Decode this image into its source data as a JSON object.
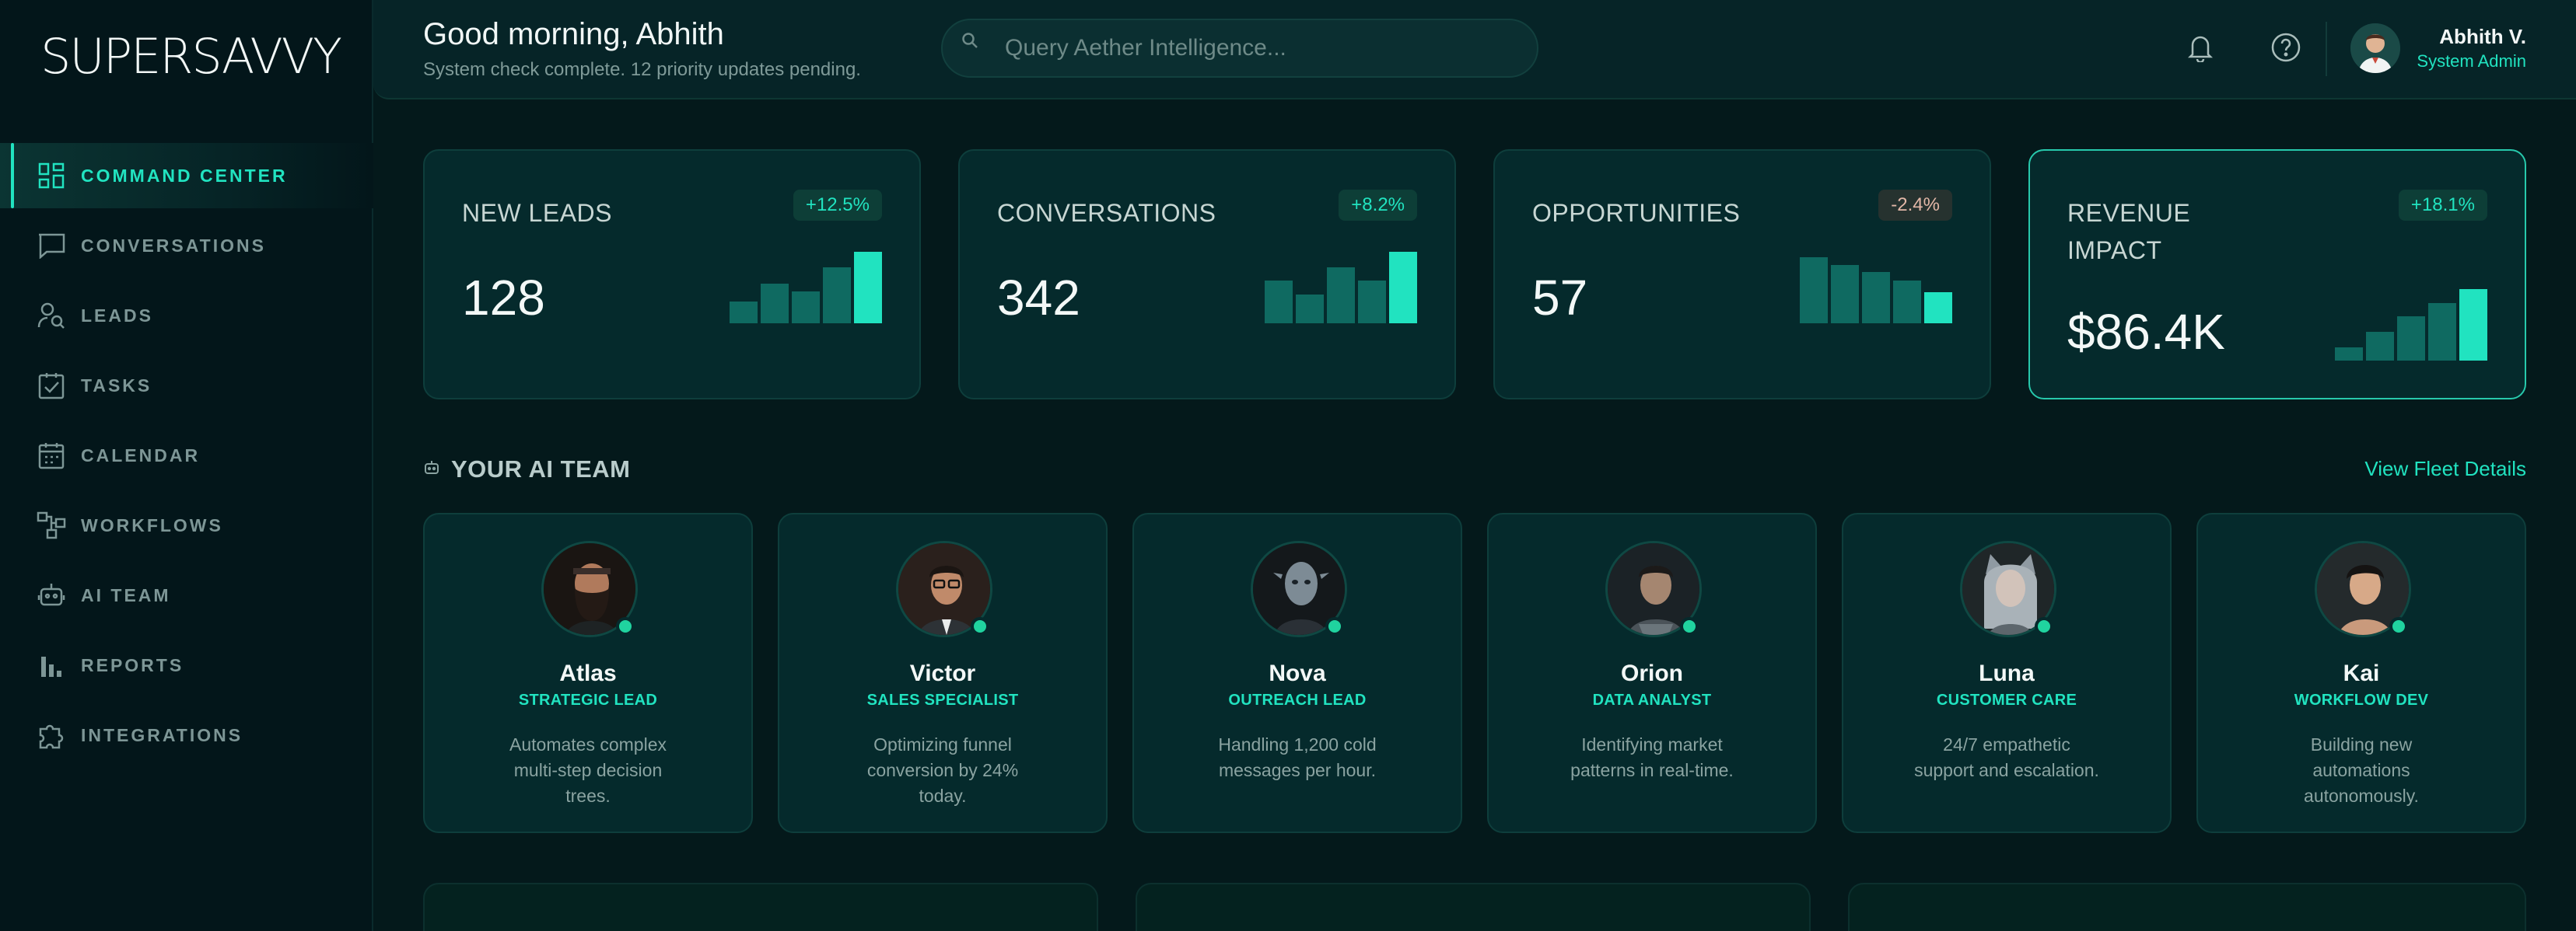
{
  "brand": {
    "logo": "SUPERSAVVY",
    "accent": "#21e3c0"
  },
  "sidebar": {
    "items": [
      {
        "label": "COMMAND CENTER",
        "icon": "grid-icon",
        "active": true
      },
      {
        "label": "CONVERSATIONS",
        "icon": "chat-icon"
      },
      {
        "label": "LEADS",
        "icon": "user-search-icon"
      },
      {
        "label": "TASKS",
        "icon": "checkbox-icon"
      },
      {
        "label": "CALENDAR",
        "icon": "calendar-icon"
      },
      {
        "label": "WORKFLOWS",
        "icon": "workflow-icon"
      },
      {
        "label": "AI TEAM",
        "icon": "robot-icon"
      },
      {
        "label": "REPORTS",
        "icon": "bar-chart-icon"
      },
      {
        "label": "INTEGRATIONS",
        "icon": "puzzle-icon"
      }
    ]
  },
  "header": {
    "greeting": "Good morning, Abhith",
    "subtitle": "System check complete. 12 priority updates pending.",
    "search_placeholder": "Query Aether Intelligence...",
    "user_name": "Abhith V.",
    "user_role": "System Admin"
  },
  "stats": [
    {
      "label": "NEW LEADS",
      "value": "128",
      "change": "+12.5%",
      "trend": "pos",
      "bars": [
        0.3,
        0.55,
        0.45,
        0.78,
        1.0
      ]
    },
    {
      "label": "CONVERSATIONS",
      "value": "342",
      "change": "+8.2%",
      "trend": "pos",
      "bars": [
        0.6,
        0.4,
        0.78,
        0.6,
        1.0
      ]
    },
    {
      "label": "OPPORTUNITIES",
      "value": "57",
      "change": "-2.4%",
      "trend": "neg",
      "bars": [
        0.92,
        0.82,
        0.72,
        0.6,
        0.44
      ]
    },
    {
      "label": "REVENUE\nIMPACT",
      "value": "$86.4K",
      "change": "+18.1%",
      "trend": "pos",
      "bars": [
        0.18,
        0.4,
        0.62,
        0.8,
        1.0
      ]
    }
  ],
  "team": {
    "title": "YOUR AI TEAM",
    "link": "View Fleet Details",
    "agents": [
      {
        "name": "Atlas",
        "role": "STRATEGIC LEAD",
        "desc": "Automates complex multi-step decision trees."
      },
      {
        "name": "Victor",
        "role": "SALES SPECIALIST",
        "desc": "Optimizing funnel conversion by 24% today."
      },
      {
        "name": "Nova",
        "role": "OUTREACH LEAD",
        "desc": "Handling 1,200 cold messages per hour."
      },
      {
        "name": "Orion",
        "role": "DATA ANALYST",
        "desc": "Identifying market patterns in real-time."
      },
      {
        "name": "Luna",
        "role": "CUSTOMER CARE",
        "desc": "24/7 empathetic support and escalation."
      },
      {
        "name": "Kai",
        "role": "WORKFLOW DEV",
        "desc": "Building new automations autonomously."
      }
    ]
  }
}
